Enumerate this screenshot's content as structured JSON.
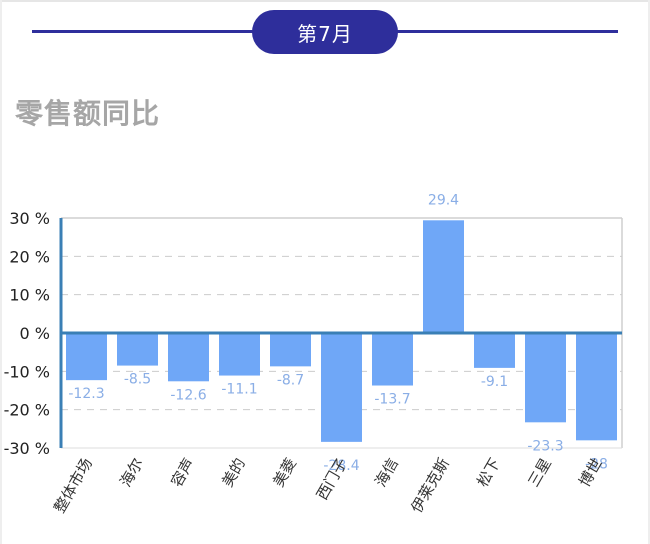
{
  "header": {
    "month_label": "第7月"
  },
  "colors": {
    "bar": "#6fa7f7",
    "accent": "#2e2e9b",
    "axis": "#3a7fb5",
    "label": "#8aaee6"
  },
  "chart_data": {
    "type": "bar",
    "title": "零售额同比",
    "categories": [
      "整体市场",
      "海尔",
      "容声",
      "美的",
      "美菱",
      "西门子",
      "海信",
      "伊莱克斯",
      "松下",
      "三星",
      "博世"
    ],
    "values": [
      -12.3,
      -8.5,
      -12.6,
      -11.1,
      -8.7,
      -28.4,
      -13.7,
      29.4,
      -9.1,
      -23.3,
      -28.0
    ],
    "ylim": [
      -30,
      30
    ],
    "yticks": [
      30,
      20,
      10,
      0,
      -10,
      -20,
      -30
    ],
    "ytick_labels": [
      "30 %",
      "20 %",
      "10 %",
      "0 %",
      "-10 %",
      "-20 %",
      "-30 %"
    ],
    "grid": true,
    "data_labels": true
  }
}
